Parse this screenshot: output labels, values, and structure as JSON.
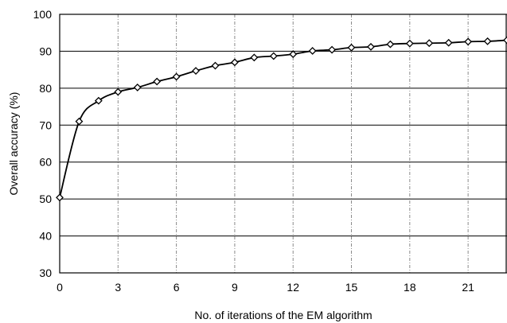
{
  "chart_data": {
    "type": "line",
    "title": "",
    "xlabel": "No. of iterations of the EM algorithm",
    "ylabel": "Overall accuracy (%)",
    "xlim": [
      0,
      23
    ],
    "ylim": [
      30,
      100
    ],
    "x_ticks": [
      0,
      3,
      6,
      9,
      12,
      15,
      18,
      21
    ],
    "y_ticks": [
      30,
      40,
      50,
      60,
      70,
      80,
      90,
      100
    ],
    "grid": true,
    "series": [
      {
        "x": [
          0,
          1,
          2,
          3,
          4,
          5,
          6,
          7,
          8,
          9,
          10,
          11,
          12,
          13,
          14,
          15,
          16,
          17,
          18,
          19,
          20,
          21,
          22,
          23
        ],
        "values": [
          50.4,
          71.0,
          76.6,
          79.0,
          80.2,
          81.8,
          83.1,
          84.7,
          86.1,
          87.0,
          88.3,
          88.7,
          89.2,
          90.1,
          90.4,
          91.0,
          91.2,
          91.9,
          92.1,
          92.2,
          92.3,
          92.6,
          92.7,
          93.0
        ]
      }
    ],
    "line_color": "#000000",
    "marker": "diamond"
  }
}
